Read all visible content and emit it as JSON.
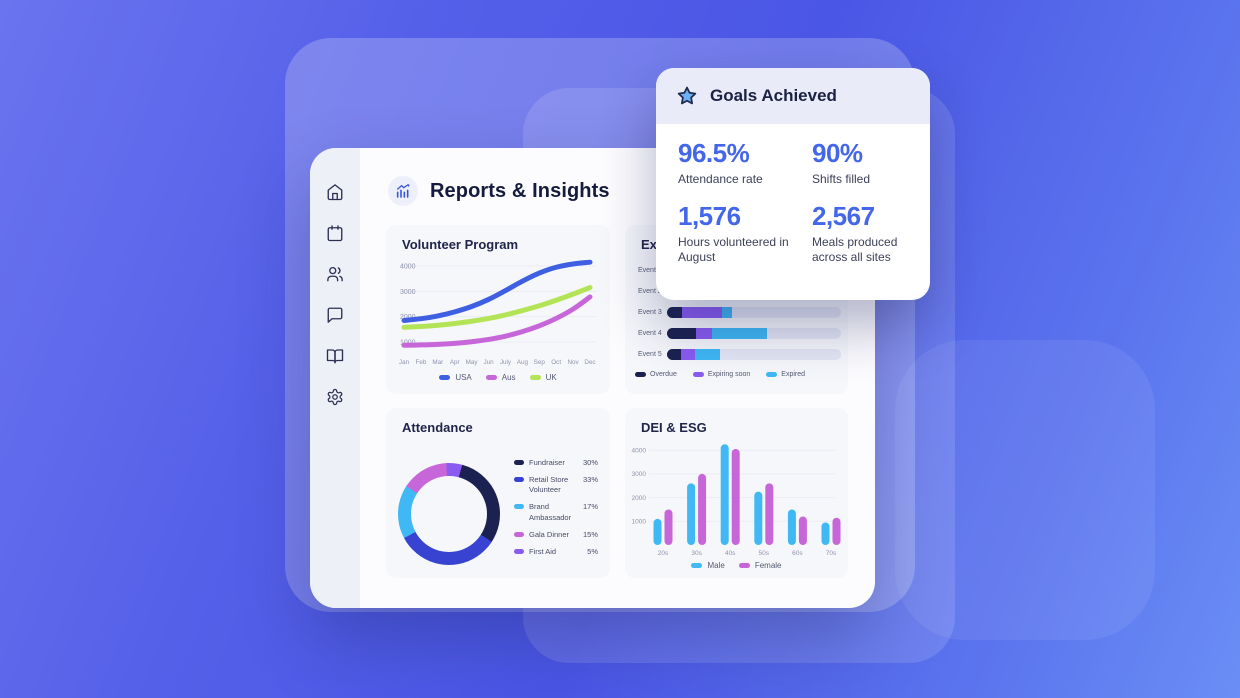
{
  "header": {
    "title": "Reports & Insights",
    "icon": "bar-chart-trend-icon"
  },
  "sidebar": {
    "items": [
      {
        "name": "home"
      },
      {
        "name": "calendar"
      },
      {
        "name": "users"
      },
      {
        "name": "chat"
      },
      {
        "name": "book"
      },
      {
        "name": "settings"
      }
    ]
  },
  "goals_card": {
    "title": "Goals Achieved",
    "icon": "star-icon",
    "stats": [
      {
        "value": "96.5%",
        "label": "Attendance rate"
      },
      {
        "value": "90%",
        "label": "Shifts filled"
      },
      {
        "value": "1,576",
        "label": "Hours volunteered in August"
      },
      {
        "value": "2,567",
        "label": "Meals produced across all sites"
      }
    ]
  },
  "colors": {
    "navy": "#1b2150",
    "indigo": "#3943d2",
    "sky": "#3fb8f4",
    "orchid": "#c766d9",
    "purple": "#8a5bf0",
    "green": "#b3e356",
    "blue": "#3e5fe2",
    "stat_blue": "#4466e8",
    "track": "#e4e6f4",
    "grid": "#ebecf4",
    "tick": "#8e94ac"
  },
  "chart_data": [
    {
      "type": "line",
      "title": "Volunteer Program",
      "x": [
        "Jan",
        "Feb",
        "Mar",
        "Apr",
        "May",
        "Jun",
        "July",
        "Aug",
        "Sep",
        "Oct",
        "Nov",
        "Dec"
      ],
      "yticks": [
        4000,
        3000,
        2000,
        1000
      ],
      "ylim": [
        1000,
        4300
      ],
      "grid": true,
      "legend_position": "bottom",
      "series": [
        {
          "name": "Aus",
          "color": "#c766d9",
          "values": [
            870,
            885,
            905,
            945,
            1010,
            1100,
            1230,
            1410,
            1640,
            1930,
            2300,
            2780
          ]
        },
        {
          "name": "UK",
          "color": "#b3e356",
          "values": [
            1580,
            1610,
            1660,
            1730,
            1820,
            1930,
            2070,
            2240,
            2430,
            2650,
            2890,
            3150
          ]
        },
        {
          "name": "USA",
          "color": "#3e5fe2",
          "values": [
            1850,
            1920,
            2030,
            2190,
            2400,
            2680,
            3030,
            3400,
            3720,
            3950,
            4080,
            4150
          ]
        }
      ],
      "legend_order": [
        "USA",
        "Aus",
        "UK"
      ]
    },
    {
      "type": "bar",
      "subtype": "horizontal-stacked",
      "title": "Exp",
      "categories": [
        "Event 1",
        "Event 2",
        "Event 3",
        "Event 4",
        "Event 5"
      ],
      "series": [
        {
          "name": "Overdue",
          "color": "#1b2150",
          "values": [
            20,
            18,
            14,
            22,
            15
          ]
        },
        {
          "name": "Expiring soon",
          "color": "#8a5bf0",
          "values": [
            35,
            25,
            38,
            12,
            14
          ]
        },
        {
          "name": "Expired",
          "color": "#3fb8f4",
          "values": [
            15,
            20,
            9,
            42,
            26
          ]
        }
      ],
      "value_unit": "percent-of-track",
      "legend_position": "bottom"
    },
    {
      "type": "pie",
      "title": "Attendance",
      "labels": [
        "Fundraiser",
        "Retail Store Volunteer",
        "Brand Ambassador",
        "Gala Dinner",
        "First Aid"
      ],
      "values": [
        30,
        33,
        17,
        15,
        5
      ],
      "pct_labels": [
        "30%",
        "33%",
        "17%",
        "15%",
        "5%"
      ],
      "colors": [
        "#1b2150",
        "#3943d2",
        "#3fb8f4",
        "#c766d9",
        "#8a5bf0"
      ],
      "donut": true,
      "start_angle_deg": 15,
      "legend_position": "right"
    },
    {
      "type": "bar",
      "title": "DEI & ESG",
      "categories": [
        "20s",
        "30s",
        "40s",
        "50s",
        "60s",
        "70s"
      ],
      "yticks": [
        4000,
        3000,
        2000,
        1000
      ],
      "ylim": [
        0,
        4350
      ],
      "grid": true,
      "series": [
        {
          "name": "Male",
          "color": "#3fb8f4",
          "values": [
            1100,
            2600,
            4250,
            2250,
            1500,
            950
          ]
        },
        {
          "name": "Female",
          "color": "#c766d9",
          "values": [
            1500,
            3000,
            4050,
            2600,
            1200,
            1150
          ]
        }
      ],
      "legend_position": "bottom"
    }
  ]
}
